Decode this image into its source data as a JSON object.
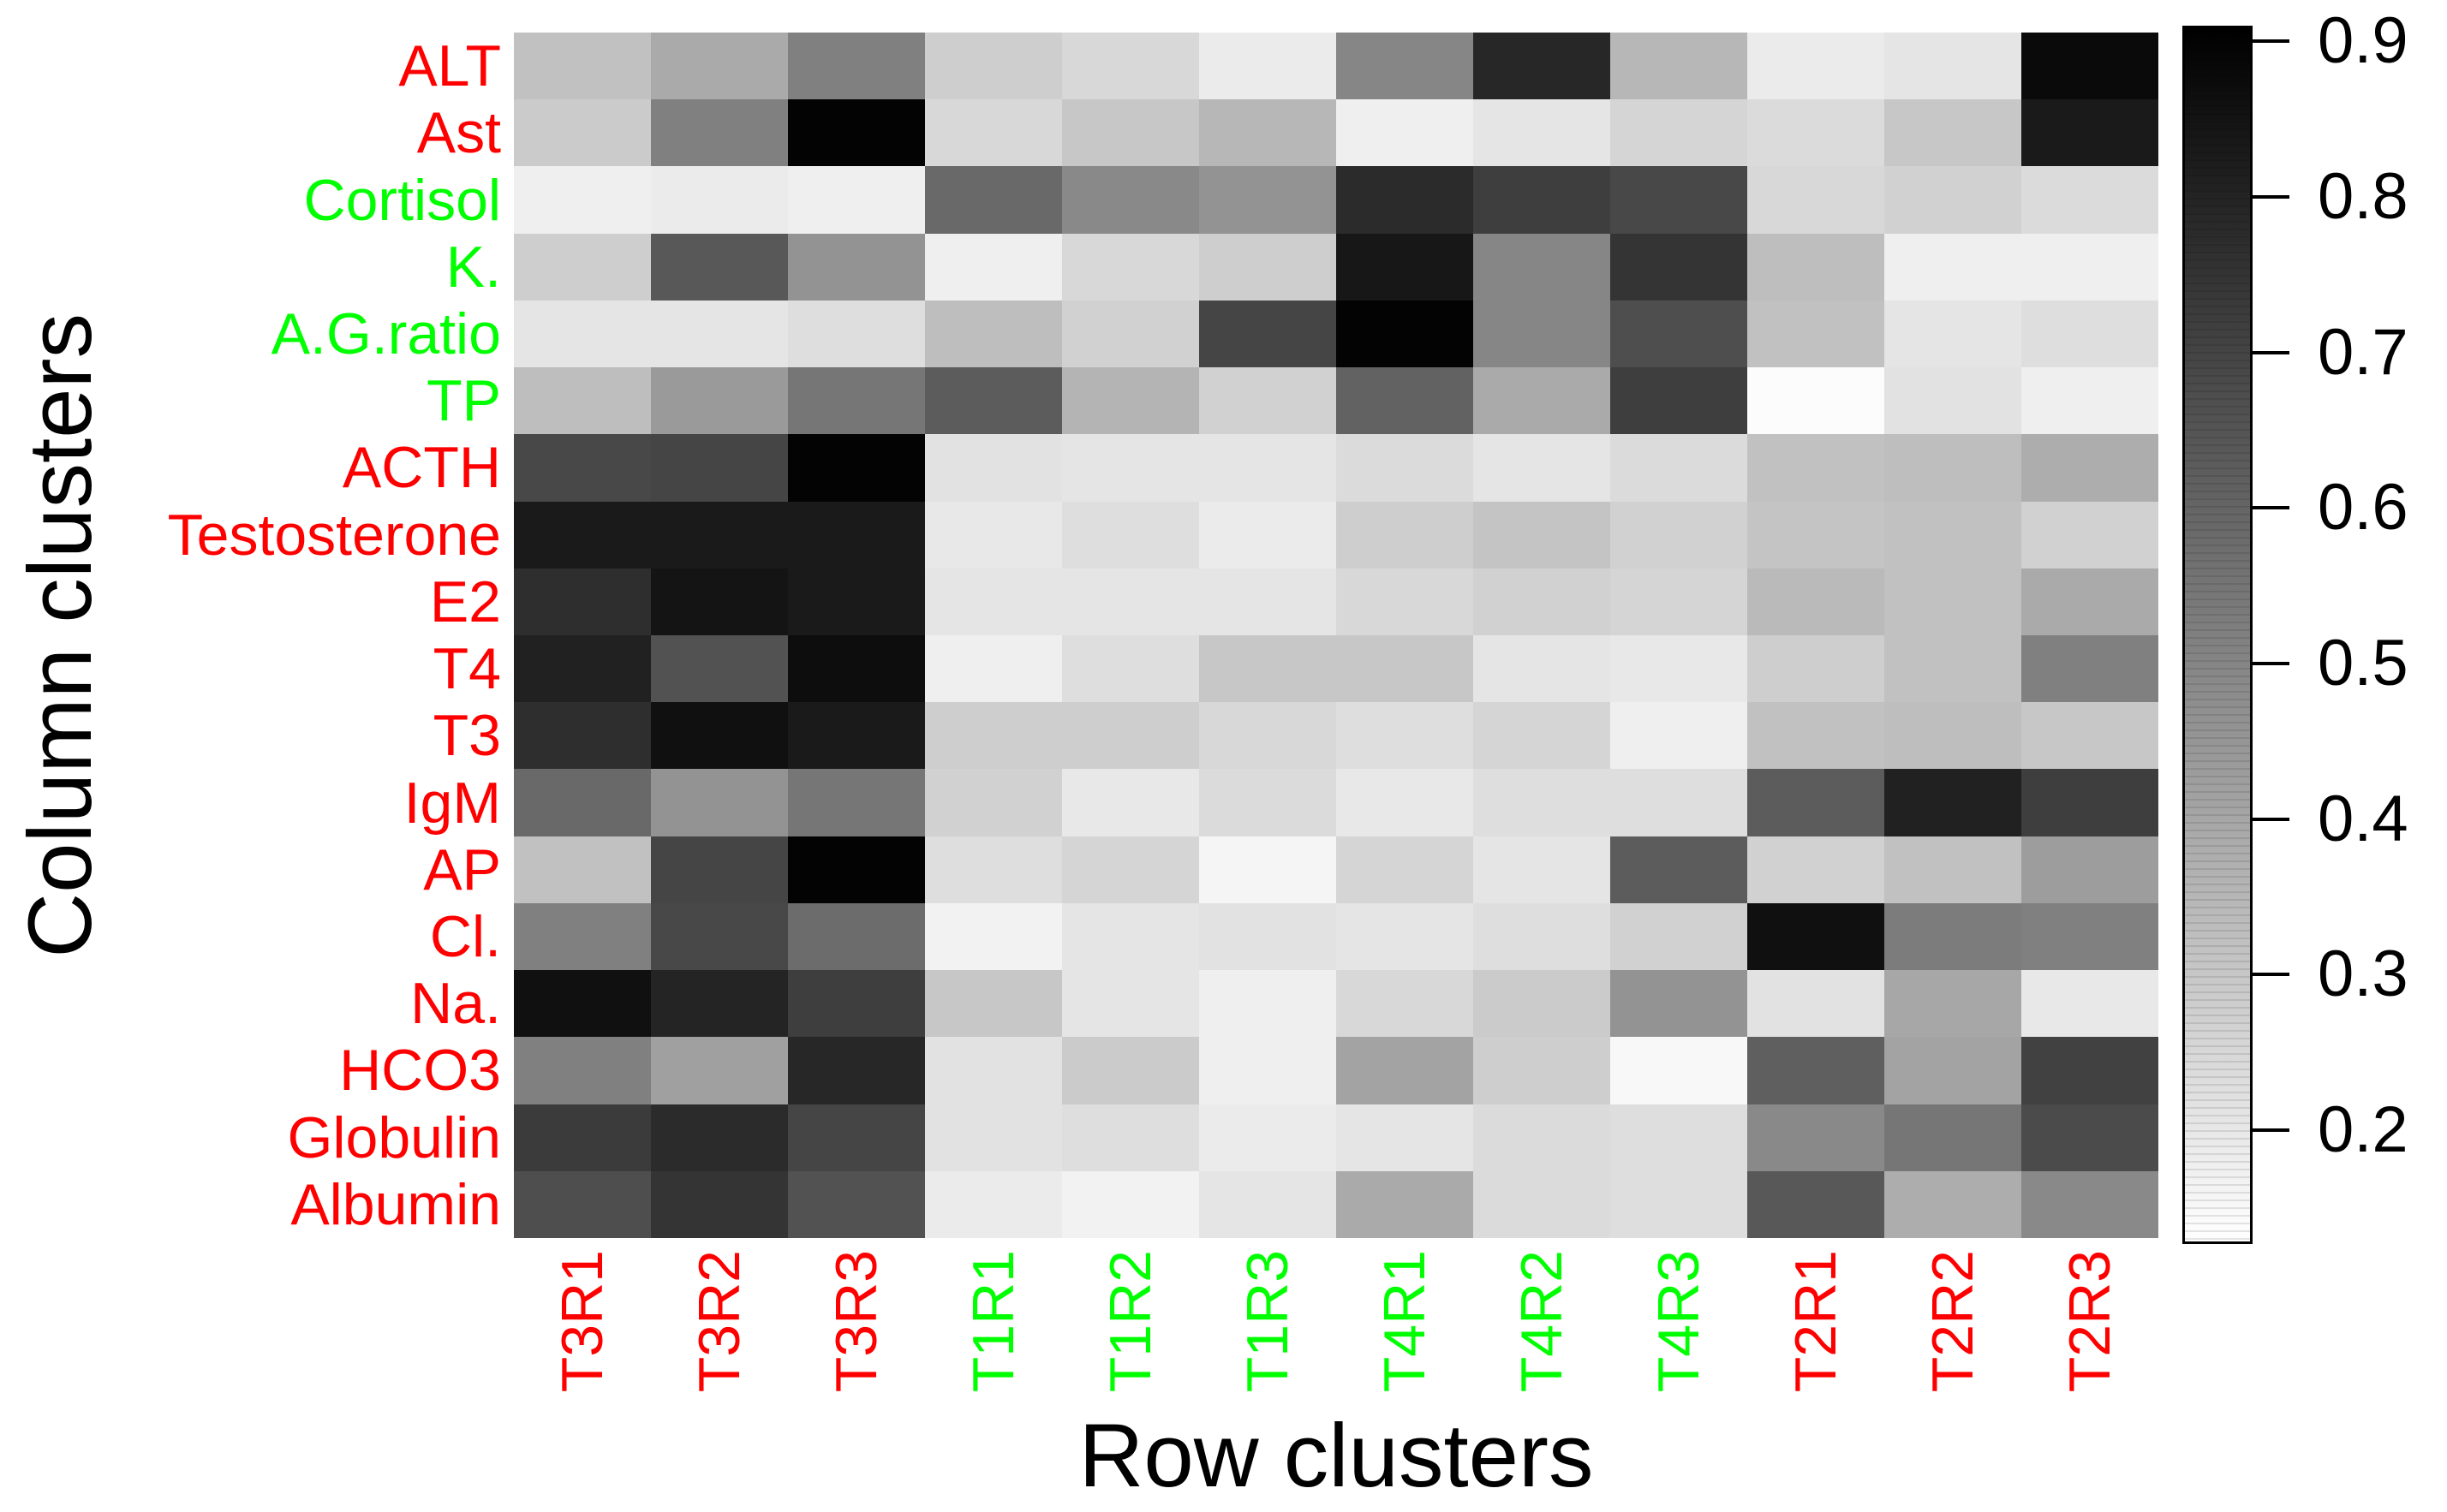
{
  "chart_data": {
    "type": "heatmap",
    "title": "",
    "xlabel": "Row clusters",
    "ylabel": "Column clusters",
    "x_categories": [
      "T3R1",
      "T3R2",
      "T3R3",
      "T1R1",
      "T1R2",
      "T1R3",
      "T4R1",
      "T4R2",
      "T4R3",
      "T2R1",
      "T2R2",
      "T2R3"
    ],
    "x_label_colors": [
      "#ff0000",
      "#ff0000",
      "#ff0000",
      "#00ff00",
      "#00ff00",
      "#00ff00",
      "#00ff00",
      "#00ff00",
      "#00ff00",
      "#ff0000",
      "#ff0000",
      "#ff0000"
    ],
    "y_categories": [
      "ALT",
      "Ast",
      "Cortisol",
      "K.",
      "A.G.ratio",
      "TP",
      "ACTH",
      "Testosterone",
      "E2",
      "T4",
      "T3",
      "IgM",
      "AP",
      "Cl.",
      "Na.",
      "HCO3",
      "Globulin",
      "Albumin"
    ],
    "y_label_colors": [
      "#ff0000",
      "#ff0000",
      "#00ff00",
      "#00ff00",
      "#00ff00",
      "#00ff00",
      "#ff0000",
      "#ff0000",
      "#ff0000",
      "#ff0000",
      "#ff0000",
      "#ff0000",
      "#ff0000",
      "#ff0000",
      "#ff0000",
      "#ff0000",
      "#ff0000",
      "#ff0000"
    ],
    "values": [
      [
        0.32,
        0.39,
        0.52,
        0.28,
        0.25,
        0.19,
        0.5,
        0.79,
        0.35,
        0.19,
        0.21,
        0.88
      ],
      [
        0.29,
        0.52,
        0.9,
        0.25,
        0.3,
        0.35,
        0.18,
        0.21,
        0.26,
        0.24,
        0.3,
        0.83
      ],
      [
        0.18,
        0.19,
        0.18,
        0.59,
        0.49,
        0.46,
        0.78,
        0.72,
        0.69,
        0.25,
        0.27,
        0.24
      ],
      [
        0.28,
        0.64,
        0.46,
        0.18,
        0.25,
        0.28,
        0.84,
        0.5,
        0.75,
        0.33,
        0.18,
        0.18
      ],
      [
        0.21,
        0.21,
        0.23,
        0.33,
        0.27,
        0.7,
        0.9,
        0.5,
        0.67,
        0.32,
        0.21,
        0.23
      ],
      [
        0.33,
        0.44,
        0.55,
        0.63,
        0.36,
        0.27,
        0.61,
        0.39,
        0.72,
        0.14,
        0.22,
        0.18
      ],
      [
        0.69,
        0.7,
        0.9,
        0.22,
        0.21,
        0.21,
        0.24,
        0.21,
        0.24,
        0.32,
        0.33,
        0.38
      ],
      [
        0.83,
        0.83,
        0.83,
        0.2,
        0.23,
        0.19,
        0.28,
        0.31,
        0.27,
        0.31,
        0.32,
        0.27
      ],
      [
        0.77,
        0.85,
        0.83,
        0.21,
        0.21,
        0.21,
        0.25,
        0.27,
        0.26,
        0.34,
        0.32,
        0.39
      ],
      [
        0.81,
        0.66,
        0.87,
        0.18,
        0.23,
        0.3,
        0.3,
        0.21,
        0.2,
        0.28,
        0.32,
        0.52
      ],
      [
        0.77,
        0.86,
        0.83,
        0.28,
        0.28,
        0.25,
        0.23,
        0.26,
        0.18,
        0.32,
        0.33,
        0.3
      ],
      [
        0.59,
        0.46,
        0.55,
        0.27,
        0.2,
        0.24,
        0.2,
        0.23,
        0.23,
        0.63,
        0.81,
        0.72
      ],
      [
        0.32,
        0.7,
        0.9,
        0.23,
        0.26,
        0.16,
        0.26,
        0.21,
        0.63,
        0.27,
        0.32,
        0.43
      ],
      [
        0.52,
        0.69,
        0.58,
        0.17,
        0.21,
        0.22,
        0.21,
        0.23,
        0.27,
        0.86,
        0.53,
        0.52
      ],
      [
        0.86,
        0.8,
        0.72,
        0.3,
        0.21,
        0.18,
        0.25,
        0.29,
        0.46,
        0.22,
        0.4,
        0.2
      ],
      [
        0.52,
        0.42,
        0.79,
        0.22,
        0.29,
        0.18,
        0.41,
        0.28,
        0.15,
        0.62,
        0.41,
        0.71
      ],
      [
        0.73,
        0.78,
        0.7,
        0.22,
        0.23,
        0.19,
        0.21,
        0.24,
        0.23,
        0.49,
        0.55,
        0.68
      ],
      [
        0.67,
        0.75,
        0.66,
        0.19,
        0.17,
        0.21,
        0.39,
        0.24,
        0.23,
        0.64,
        0.38,
        0.49
      ]
    ],
    "colorscale": {
      "type": "grayscale",
      "high_color": "#000000",
      "low_color": "#ffffff",
      "domain_min": 0.13,
      "domain_max": 0.91
    },
    "colorbar_ticks": [
      "0.9",
      "0.8",
      "0.7",
      "0.6",
      "0.5",
      "0.4",
      "0.3",
      "0.2"
    ],
    "grid": false,
    "legend_position": "right-colorbar"
  }
}
